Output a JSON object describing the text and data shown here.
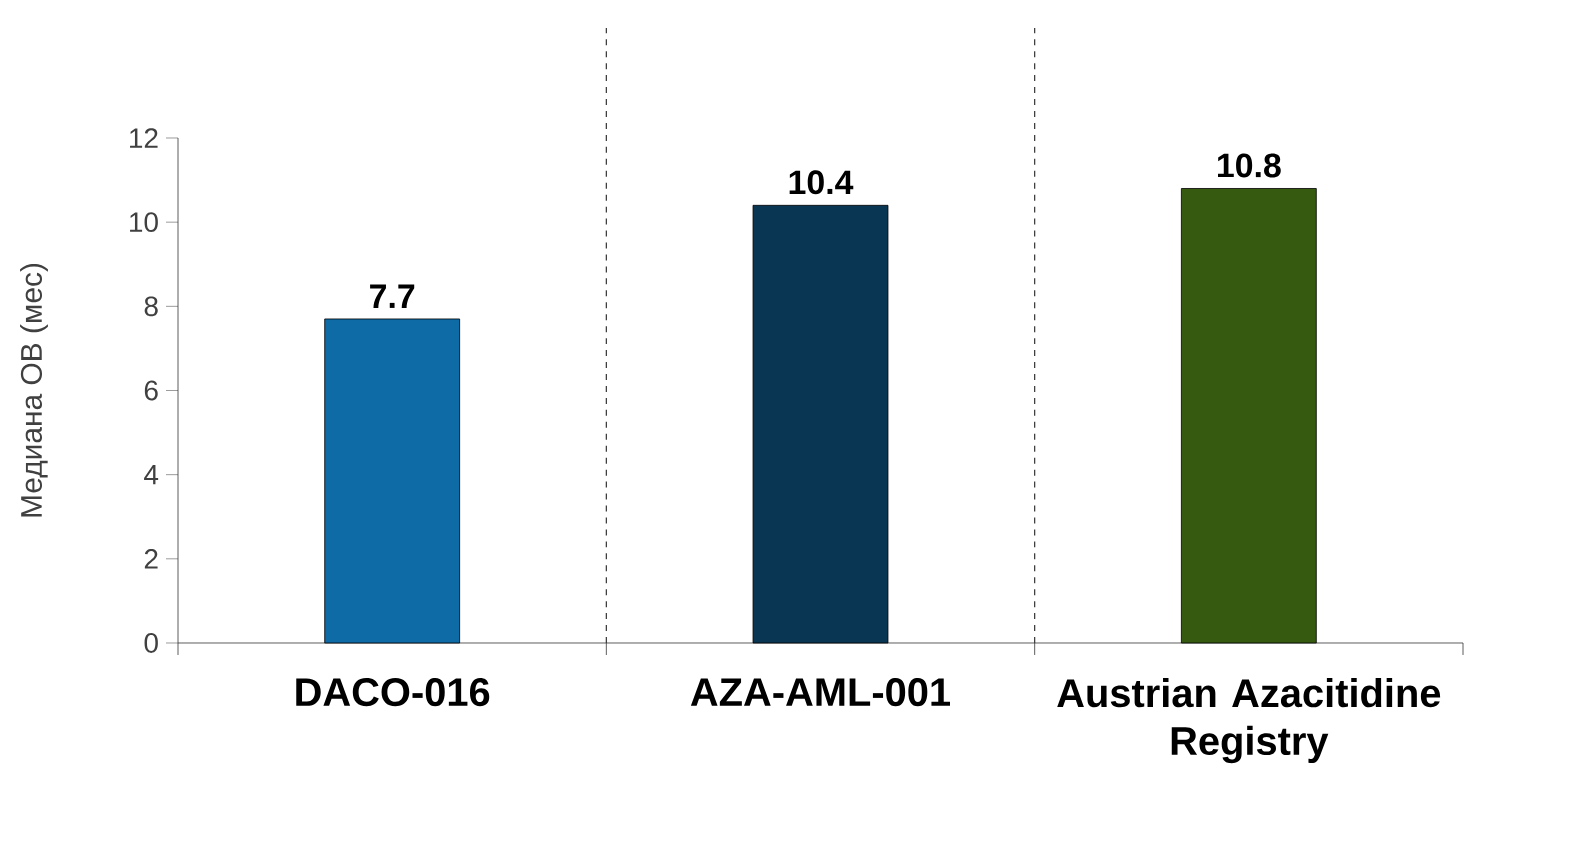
{
  "chart_data": {
    "type": "bar",
    "ylabel": "Медиана ОВ (мес)",
    "categories": [
      "DACO-016",
      "AZA-AML-001",
      "Austrian Azacitidine Registry"
    ],
    "values": [
      7.7,
      10.4,
      10.8
    ],
    "colors": [
      "#0e6ba6",
      "#083653",
      "#375a11"
    ],
    "value_labels": [
      "7.7",
      "10.4",
      "10.8"
    ],
    "ylim": [
      0,
      12
    ],
    "yticks": [
      0,
      2,
      4,
      6,
      8,
      10,
      12
    ],
    "grid": "x"
  }
}
